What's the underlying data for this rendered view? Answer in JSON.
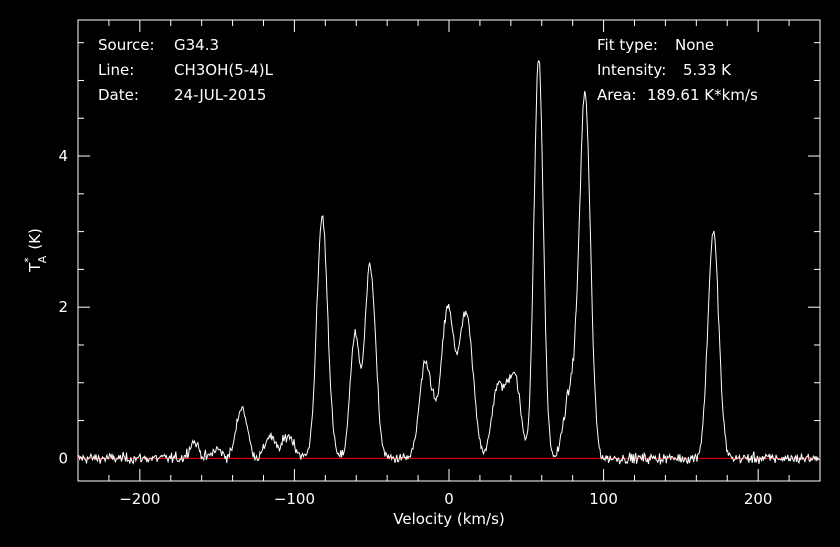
{
  "chart_data": {
    "type": "line",
    "xlabel": "Velocity (km/s)",
    "ylabel_main": "T",
    "ylabel_sup": "*",
    "ylabel_sub": "A",
    "ylabel_unit": "(K)",
    "xlim": [
      -240,
      240
    ],
    "ylim": [
      -0.3,
      5.8
    ],
    "xticks": [
      -200,
      -100,
      0,
      100,
      200
    ],
    "yticks": [
      0,
      2,
      4
    ],
    "grid": false,
    "colors": {
      "background": "#000000",
      "spectrum": "#ffffff",
      "baseline": "#ff0000",
      "axes": "#ffffff"
    },
    "info_left": [
      {
        "key": "Source:",
        "value": "G34.3"
      },
      {
        "key": "Line:",
        "value": "CH3OH(5-4)L"
      },
      {
        "key": "Date:",
        "value": "24-JUL-2015"
      }
    ],
    "info_right": [
      {
        "key": "Fit type:",
        "value": "None"
      },
      {
        "key": "Intensity:",
        "value": "5.33 K"
      },
      {
        "key": "Area:",
        "value": "189.61 K*km/s"
      }
    ],
    "baseline_value": 0,
    "series": [
      {
        "peaks": [
          {
            "x": -165,
            "y": 0.22,
            "w": 3
          },
          {
            "x": -150,
            "y": 0.12,
            "w": 3
          },
          {
            "x": -134,
            "y": 0.68,
            "w": 3.5
          },
          {
            "x": -116,
            "y": 0.3,
            "w": 3
          },
          {
            "x": -104,
            "y": 0.3,
            "w": 4
          },
          {
            "x": -82,
            "y": 3.2,
            "w": 3.5
          },
          {
            "x": -61,
            "y": 1.6,
            "w": 3
          },
          {
            "x": -51,
            "y": 2.55,
            "w": 3.5
          },
          {
            "x": -16,
            "y": 1.1,
            "w": 3.5
          },
          {
            "x": -11,
            "y": 0.45,
            "w": 3
          },
          {
            "x": -1,
            "y": 1.95,
            "w": 4
          },
          {
            "x": 11,
            "y": 1.9,
            "w": 4.5
          },
          {
            "x": 30,
            "y": 0.65,
            "w": 3
          },
          {
            "x": 36,
            "y": 0.75,
            "w": 4
          },
          {
            "x": 43,
            "y": 0.95,
            "w": 3.5
          },
          {
            "x": 58,
            "y": 5.3,
            "w": 3
          },
          {
            "x": 76,
            "y": 0.55,
            "w": 3
          },
          {
            "x": 81,
            "y": 0.7,
            "w": 3
          },
          {
            "x": 88,
            "y": 4.8,
            "w": 3.5
          },
          {
            "x": 171,
            "y": 3.0,
            "w": 3.5
          }
        ],
        "noise_rms": 0.07
      }
    ]
  }
}
